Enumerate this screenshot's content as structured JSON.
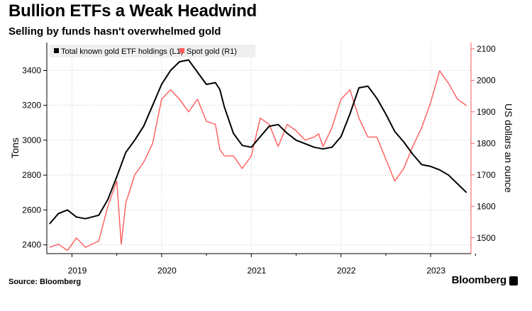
{
  "title": "Bullion ETFs a Weak Headwind",
  "subtitle": "Selling by funds hasn't overwhelmed gold",
  "source": "Source: Bloomberg",
  "brand": "Bloomberg",
  "chart_data": {
    "type": "line",
    "grid": true,
    "legend_position": "top-left",
    "xlabel": "",
    "x_ticks": [
      "2019",
      "2020",
      "2021",
      "2022",
      "2023"
    ],
    "left_axis": {
      "label": "Tons",
      "ylim": [
        2350,
        3560
      ],
      "ticks": [
        "2400",
        "2600",
        "2800",
        "3000",
        "3200",
        "3400"
      ]
    },
    "right_axis": {
      "label": "US dollars an ounce",
      "ylim": [
        1450,
        2120
      ],
      "ticks": [
        "1500",
        "1600",
        "1700",
        "1800",
        "1900",
        "2000",
        "2100"
      ],
      "color": "#ff5a5a"
    },
    "series": [
      {
        "name": "Total known gold ETF holdings (L1)",
        "axis": "left",
        "color": "#000000",
        "x": [
          2018.75,
          2018.85,
          2018.95,
          2019.05,
          2019.15,
          2019.3,
          2019.4,
          2019.5,
          2019.6,
          2019.7,
          2019.8,
          2019.9,
          2020.0,
          2020.1,
          2020.2,
          2020.3,
          2020.4,
          2020.5,
          2020.6,
          2020.65,
          2020.7,
          2020.8,
          2020.9,
          2021.0,
          2021.1,
          2021.2,
          2021.3,
          2021.4,
          2021.5,
          2021.6,
          2021.7,
          2021.8,
          2021.9,
          2022.0,
          2022.1,
          2022.2,
          2022.3,
          2022.4,
          2022.5,
          2022.6,
          2022.7,
          2022.8,
          2022.9,
          2023.0,
          2023.1,
          2023.2,
          2023.3,
          2023.4
        ],
        "values": [
          2520,
          2580,
          2600,
          2560,
          2550,
          2570,
          2660,
          2790,
          2930,
          3000,
          3080,
          3200,
          3320,
          3400,
          3450,
          3460,
          3390,
          3320,
          3330,
          3290,
          3190,
          3040,
          2970,
          2960,
          3020,
          3080,
          3090,
          3040,
          3000,
          2980,
          2960,
          2950,
          2960,
          3020,
          3150,
          3300,
          3310,
          3240,
          3150,
          3050,
          2990,
          2920,
          2860,
          2850,
          2830,
          2800,
          2750,
          2700
        ]
      },
      {
        "name": "Spot gold (R1)",
        "axis": "right",
        "color": "#ff5a5a",
        "x": [
          2018.75,
          2018.85,
          2018.95,
          2019.05,
          2019.15,
          2019.3,
          2019.4,
          2019.5,
          2019.55,
          2019.6,
          2019.7,
          2019.8,
          2019.9,
          2020.0,
          2020.1,
          2020.2,
          2020.3,
          2020.4,
          2020.5,
          2020.6,
          2020.65,
          2020.7,
          2020.8,
          2020.9,
          2021.0,
          2021.1,
          2021.2,
          2021.3,
          2021.4,
          2021.5,
          2021.6,
          2021.7,
          2021.75,
          2021.8,
          2021.9,
          2022.0,
          2022.1,
          2022.2,
          2022.3,
          2022.4,
          2022.5,
          2022.6,
          2022.7,
          2022.8,
          2022.9,
          2023.0,
          2023.1,
          2023.2,
          2023.3,
          2023.4
        ],
        "values": [
          1470,
          1480,
          1460,
          1500,
          1470,
          1490,
          1600,
          1680,
          1480,
          1610,
          1700,
          1740,
          1800,
          1940,
          1970,
          1940,
          1900,
          1940,
          1870,
          1860,
          1780,
          1760,
          1760,
          1720,
          1760,
          1880,
          1860,
          1790,
          1860,
          1840,
          1810,
          1820,
          1830,
          1790,
          1850,
          1940,
          1970,
          1880,
          1820,
          1820,
          1750,
          1680,
          1720,
          1790,
          1850,
          1930,
          2030,
          1990,
          1940,
          1920
        ]
      }
    ]
  }
}
